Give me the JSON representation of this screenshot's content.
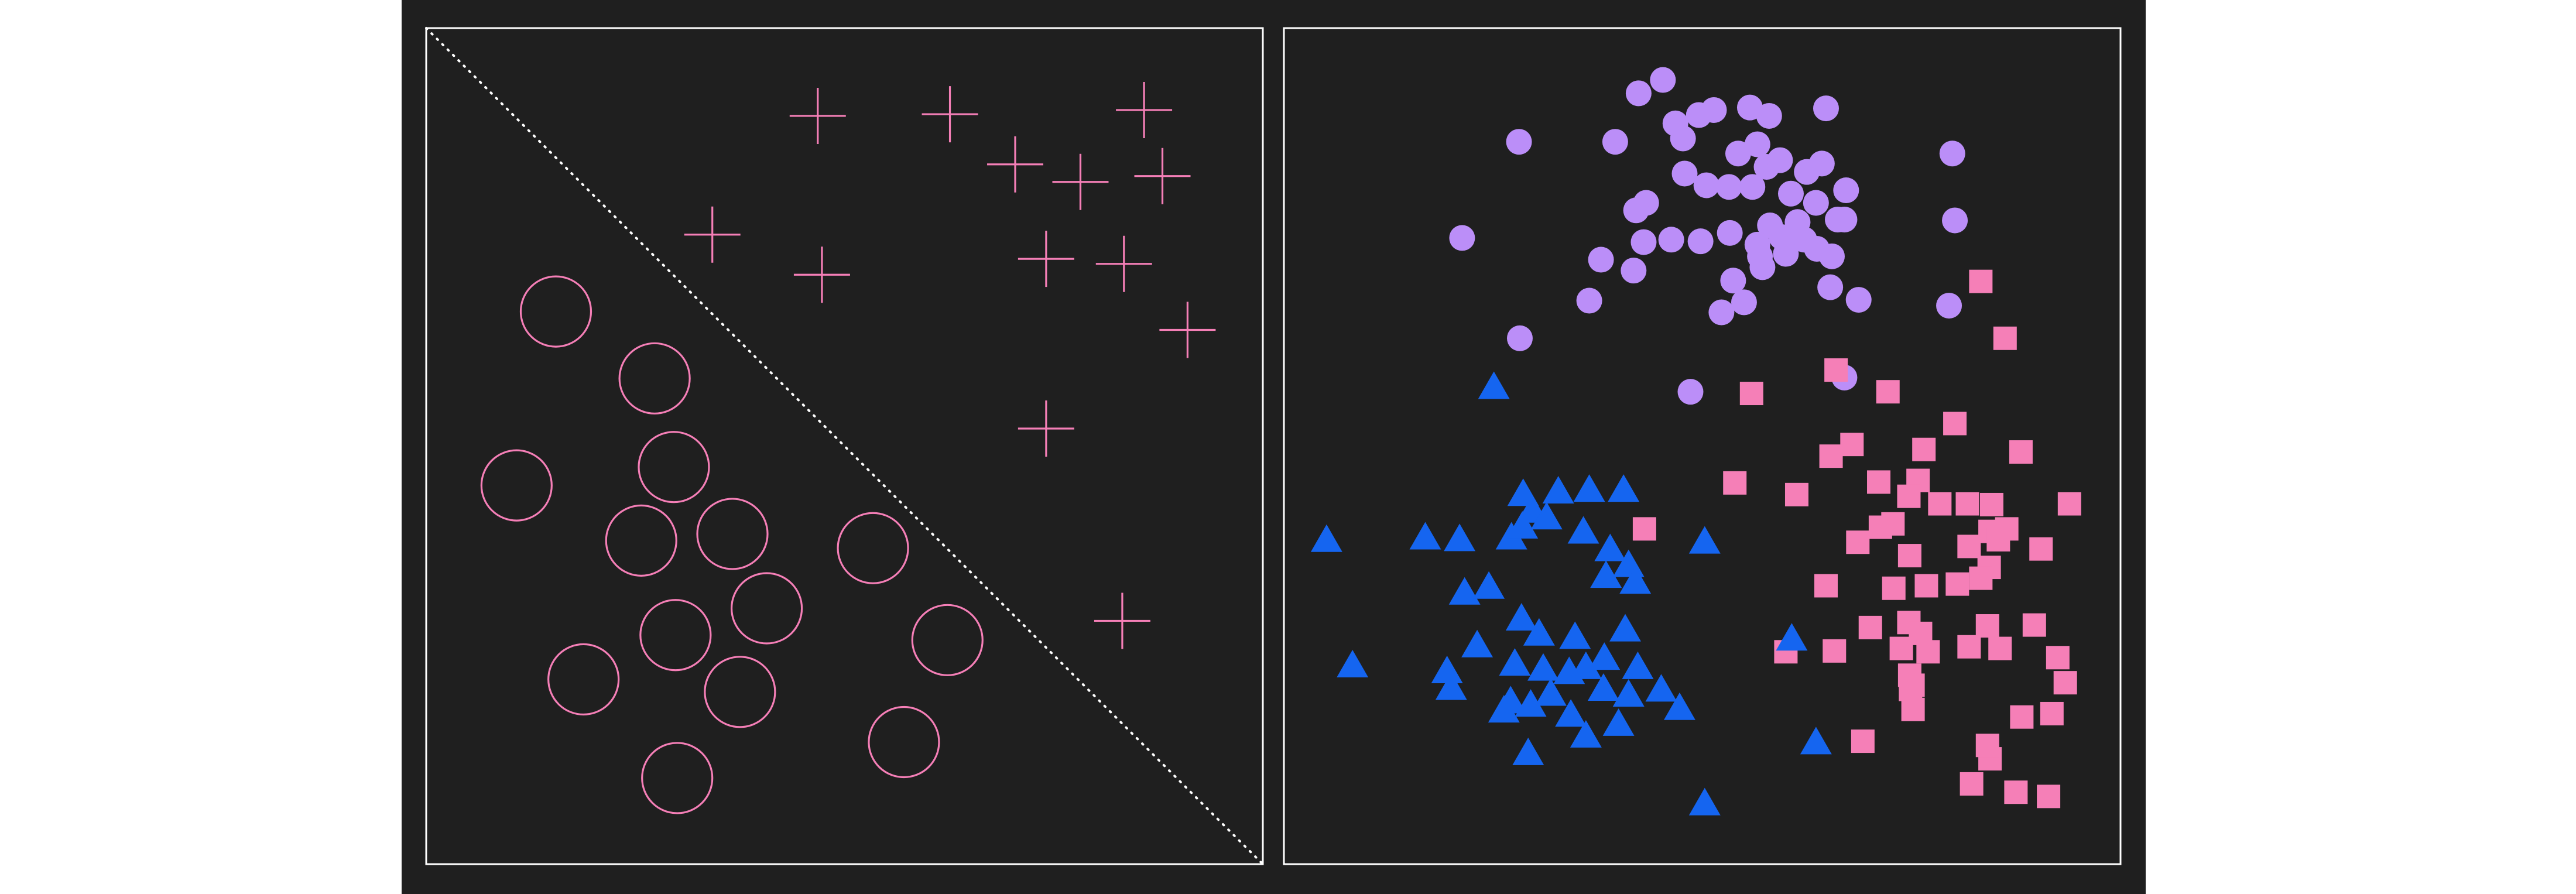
{
  "figure": {
    "background": "#1f1f1f",
    "frame_color": "#ffffff",
    "divider_style": "dotted",
    "colors": {
      "pink": "#f57fb7",
      "lavender": "#bb8ef8",
      "blue": "#1565f0"
    }
  },
  "chart_data": [
    {
      "type": "scatter",
      "title": "",
      "xlabel": "",
      "ylabel": "",
      "grid": false,
      "axis_ticks": false,
      "xlim": [
        0,
        100
      ],
      "ylim": [
        0,
        100
      ],
      "decision_boundary": {
        "style": "dotted",
        "points": [
          [
            0,
            100
          ],
          [
            100,
            0
          ]
        ]
      },
      "series": [
        {
          "marker": "plus",
          "color": "#f57fb7",
          "points": [
            [
              46.8,
              89.5
            ],
            [
              62.6,
              89.7
            ],
            [
              70.4,
              83.7
            ],
            [
              78.2,
              81.6
            ],
            [
              88.0,
              82.3
            ],
            [
              85.8,
              90.2
            ],
            [
              34.2,
              75.3
            ],
            [
              47.3,
              70.5
            ],
            [
              74.1,
              72.4
            ],
            [
              83.4,
              71.8
            ],
            [
              91.0,
              63.9
            ],
            [
              74.1,
              52.1
            ],
            [
              83.2,
              29.1
            ]
          ]
        },
        {
          "marker": "open-circle",
          "color": "#f57fb7",
          "points": [
            [
              15.5,
              66.1
            ],
            [
              27.3,
              58.1
            ],
            [
              29.6,
              47.5
            ],
            [
              10.8,
              45.3
            ],
            [
              25.7,
              38.7
            ],
            [
              36.6,
              39.5
            ],
            [
              53.4,
              37.8
            ],
            [
              40.7,
              30.6
            ],
            [
              29.8,
              27.4
            ],
            [
              18.8,
              22.1
            ],
            [
              37.5,
              20.6
            ],
            [
              62.3,
              26.8
            ],
            [
              57.1,
              14.6
            ],
            [
              30.0,
              10.3
            ]
          ]
        }
      ]
    },
    {
      "type": "scatter",
      "title": "",
      "xlabel": "",
      "ylabel": "",
      "grid": false,
      "axis_ticks": false,
      "xlim": [
        0,
        100
      ],
      "ylim": [
        0,
        100
      ],
      "series": [
        {
          "marker": "filled-circle",
          "color": "#bb8ef8",
          "points": [
            [
              42.4,
              92.2
            ],
            [
              45.3,
              93.8
            ],
            [
              28.1,
              86.4
            ],
            [
              39.6,
              86.4
            ],
            [
              43.3,
              79.1
            ],
            [
              46.8,
              88.6
            ],
            [
              47.7,
              86.8
            ],
            [
              49.6,
              89.6
            ],
            [
              51.4,
              90.2
            ],
            [
              55.7,
              90.5
            ],
            [
              58.0,
              89.5
            ],
            [
              64.8,
              90.4
            ],
            [
              54.3,
              85.0
            ],
            [
              56.6,
              86.1
            ],
            [
              57.7,
              83.4
            ],
            [
              59.3,
              84.2
            ],
            [
              62.5,
              82.8
            ],
            [
              64.3,
              83.8
            ],
            [
              42.1,
              78.2
            ],
            [
              47.9,
              82.6
            ],
            [
              50.5,
              81.2
            ],
            [
              53.2,
              81.0
            ],
            [
              56.0,
              81.0
            ],
            [
              60.6,
              80.2
            ],
            [
              63.6,
              79.1
            ],
            [
              67.2,
              80.6
            ],
            [
              58.1,
              76.4
            ],
            [
              61.4,
              76.8
            ],
            [
              67.0,
              77.1
            ],
            [
              66.2,
              77.1
            ],
            [
              43.0,
              74.4
            ],
            [
              46.3,
              74.7
            ],
            [
              49.8,
              74.5
            ],
            [
              53.3,
              75.5
            ],
            [
              56.6,
              74.1
            ],
            [
              59.5,
              75.0
            ],
            [
              62.2,
              74.7
            ],
            [
              65.5,
              72.7
            ],
            [
              57.2,
              71.4
            ],
            [
              60.0,
              73.0
            ],
            [
              63.7,
              73.6
            ],
            [
              37.9,
              72.3
            ],
            [
              41.8,
              71.0
            ],
            [
              53.7,
              69.8
            ],
            [
              56.9,
              72.7
            ],
            [
              65.3,
              69.0
            ],
            [
              68.7,
              67.5
            ],
            [
              36.5,
              67.4
            ],
            [
              52.3,
              66.0
            ],
            [
              55.0,
              67.2
            ],
            [
              21.3,
              74.9
            ],
            [
              28.2,
              62.9
            ],
            [
              79.9,
              85.0
            ],
            [
              80.2,
              77.0
            ],
            [
              79.5,
              66.8
            ],
            [
              67.0,
              58.2
            ],
            [
              48.6,
              56.5
            ]
          ]
        },
        {
          "marker": "square",
          "color": "#f57fb7",
          "points": [
            [
              83.3,
              69.7
            ],
            [
              86.2,
              62.9
            ],
            [
              55.9,
              56.3
            ],
            [
              66.0,
              59.1
            ],
            [
              72.2,
              56.5
            ],
            [
              80.2,
              52.7
            ],
            [
              67.9,
              50.2
            ],
            [
              65.4,
              48.8
            ],
            [
              76.5,
              49.6
            ],
            [
              88.1,
              49.3
            ],
            [
              53.9,
              45.6
            ],
            [
              61.3,
              44.2
            ],
            [
              71.1,
              45.7
            ],
            [
              75.8,
              45.9
            ],
            [
              74.7,
              44.0
            ],
            [
              78.4,
              43.1
            ],
            [
              81.7,
              43.1
            ],
            [
              84.6,
              43.0
            ],
            [
              93.9,
              43.1
            ],
            [
              71.3,
              40.3
            ],
            [
              72.8,
              40.7
            ],
            [
              84.4,
              39.8
            ],
            [
              86.4,
              40.1
            ],
            [
              74.8,
              36.9
            ],
            [
              81.9,
              38.0
            ],
            [
              85.4,
              38.8
            ],
            [
              90.5,
              37.7
            ],
            [
              43.1,
              40.1
            ],
            [
              68.6,
              38.5
            ],
            [
              80.5,
              33.5
            ],
            [
              84.3,
              35.5
            ],
            [
              83.3,
              34.2
            ],
            [
              64.8,
              33.3
            ],
            [
              72.9,
              33.0
            ],
            [
              76.8,
              33.3
            ],
            [
              70.1,
              28.3
            ],
            [
              74.7,
              28.9
            ],
            [
              84.1,
              28.5
            ],
            [
              89.7,
              28.6
            ],
            [
              76.1,
              27.6
            ],
            [
              85.6,
              25.8
            ],
            [
              60.0,
              25.4
            ],
            [
              65.8,
              25.5
            ],
            [
              73.8,
              25.8
            ],
            [
              77.0,
              25.4
            ],
            [
              81.9,
              26.0
            ],
            [
              92.5,
              24.7
            ],
            [
              93.4,
              21.7
            ],
            [
              75.2,
              21.4
            ],
            [
              74.9,
              20.9
            ],
            [
              75.2,
              18.5
            ],
            [
              88.2,
              17.6
            ],
            [
              69.2,
              14.7
            ],
            [
              91.8,
              18.0
            ],
            [
              84.4,
              12.6
            ],
            [
              84.1,
              14.2
            ],
            [
              82.2,
              9.6
            ],
            [
              87.5,
              8.6
            ],
            [
              91.4,
              8.1
            ],
            [
              74.8,
              22.6
            ]
          ]
        },
        {
          "marker": "triangle",
          "color": "#1565f0",
          "points": [
            [
              25.1,
              56.9
            ],
            [
              28.6,
              44.1
            ],
            [
              32.8,
              44.4
            ],
            [
              29.7,
              42.1
            ],
            [
              36.5,
              44.6
            ],
            [
              40.6,
              44.6
            ],
            [
              16.9,
              38.9
            ],
            [
              21.0,
              38.7
            ],
            [
              27.2,
              38.9
            ],
            [
              28.5,
              40.2
            ],
            [
              31.4,
              41.3
            ],
            [
              35.8,
              39.6
            ],
            [
              39.0,
              37.5
            ],
            [
              5.1,
              38.6
            ],
            [
              41.2,
              35.6
            ],
            [
              21.6,
              32.3
            ],
            [
              24.5,
              33.0
            ],
            [
              38.5,
              34.3
            ],
            [
              42.0,
              33.6
            ],
            [
              28.4,
              29.2
            ],
            [
              30.5,
              27.4
            ],
            [
              34.8,
              27.0
            ],
            [
              40.8,
              27.9
            ],
            [
              23.1,
              26.0
            ],
            [
              36.1,
              23.4
            ],
            [
              38.3,
              24.5
            ],
            [
              27.6,
              23.8
            ],
            [
              31.0,
              23.2
            ],
            [
              34.1,
              22.8
            ],
            [
              42.3,
              23.4
            ],
            [
              20.0,
              20.9
            ],
            [
              38.2,
              20.8
            ],
            [
              45.1,
              20.7
            ],
            [
              8.2,
              23.6
            ],
            [
              19.5,
              22.9
            ],
            [
              27.1,
              19.3
            ],
            [
              34.3,
              17.7
            ],
            [
              41.2,
              20.1
            ],
            [
              31.9,
              20.2
            ],
            [
              26.3,
              18.2
            ],
            [
              29.5,
              18.9
            ],
            [
              40.0,
              16.6
            ],
            [
              36.1,
              15.2
            ],
            [
              50.3,
              38.4
            ],
            [
              60.7,
              26.8
            ],
            [
              63.6,
              14.4
            ],
            [
              47.3,
              18.5
            ],
            [
              29.2,
              13.1
            ],
            [
              50.3,
              7.1
            ]
          ]
        }
      ]
    }
  ]
}
